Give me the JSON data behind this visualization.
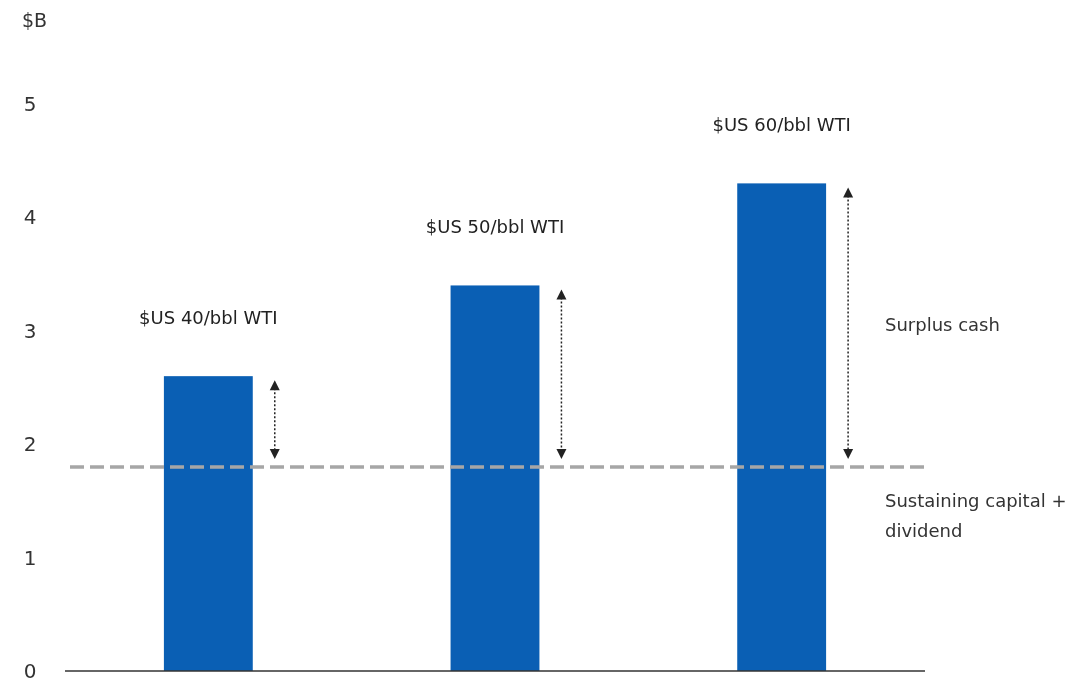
{
  "chart_data": {
    "type": "bar",
    "ylabel": "$B",
    "categories": [
      "$US 40/bbl WTI",
      "$US 50/bbl WTI",
      "$US 60/bbl WTI"
    ],
    "values": [
      2.6,
      3.4,
      4.3
    ],
    "color": "#0a5fb4",
    "ylim": [
      0,
      5
    ],
    "yticks": [
      0,
      1,
      2,
      3,
      4,
      5
    ],
    "grid": false,
    "ref_lines": [
      {
        "axis": "y",
        "value": 1.8,
        "label": "Sustaining capital + dividend",
        "color": "#a6a6a6",
        "line_style": "dashed"
      }
    ],
    "annotations": [
      "Surplus cash"
    ]
  }
}
